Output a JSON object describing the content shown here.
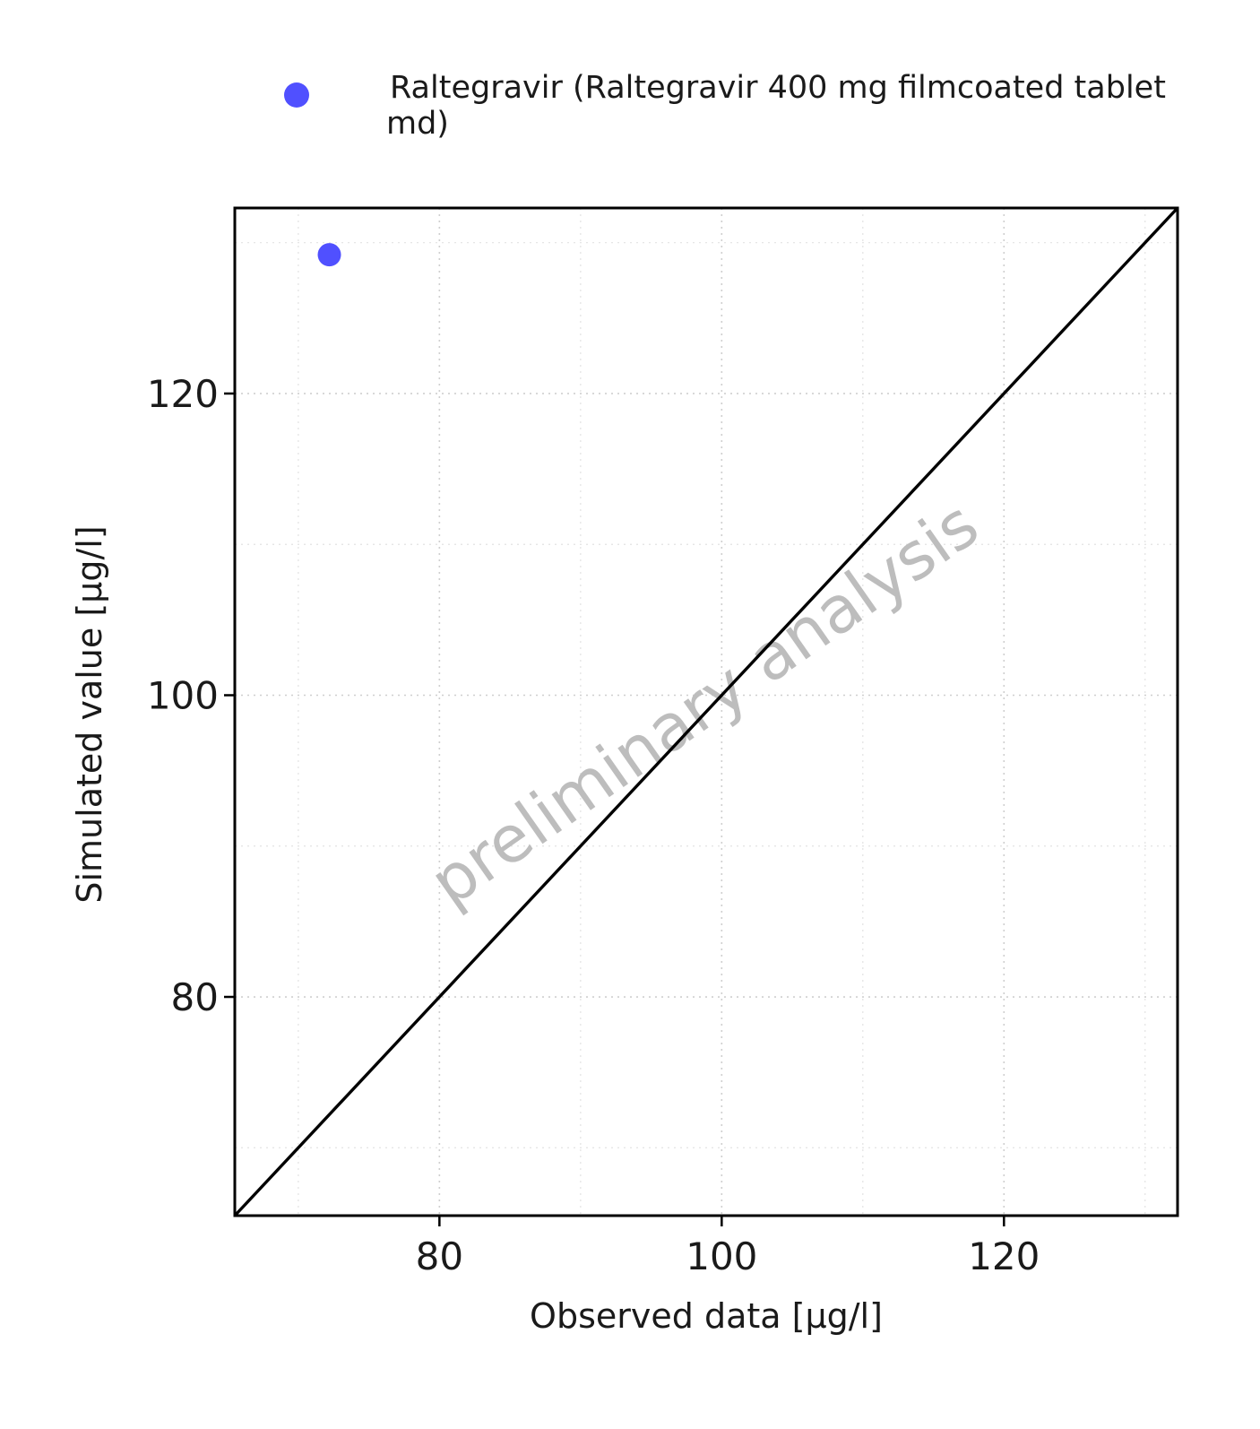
{
  "chart_data": {
    "type": "scatter",
    "title": "",
    "xlabel": "Observed data [µg/l]",
    "ylabel": "Simulated value [µg/l]",
    "xlim": [
      65.5,
      132.3
    ],
    "ylim": [
      65.5,
      132.3
    ],
    "x_ticks": [
      80,
      100,
      120
    ],
    "y_ticks": [
      80,
      100,
      120
    ],
    "x_minor_ticks": [
      70,
      90,
      110,
      130
    ],
    "y_minor_ticks": [
      70,
      90,
      110,
      130
    ],
    "grid": true,
    "legend_position": "top",
    "series": [
      {
        "name": "Raltegravir (Raltegravir 400 mg filmcoated tablet md)",
        "legend_lines": [
          "Raltegravir (Raltegravir 400 mg filmcoated tablet",
          "md)"
        ],
        "color": "#5050ff",
        "points": [
          {
            "x": 72.2,
            "y": 129.2
          }
        ]
      }
    ],
    "reference_line": {
      "type": "identity",
      "label": "y = x",
      "color": "#000000"
    },
    "watermark": "preliminary analysis"
  }
}
